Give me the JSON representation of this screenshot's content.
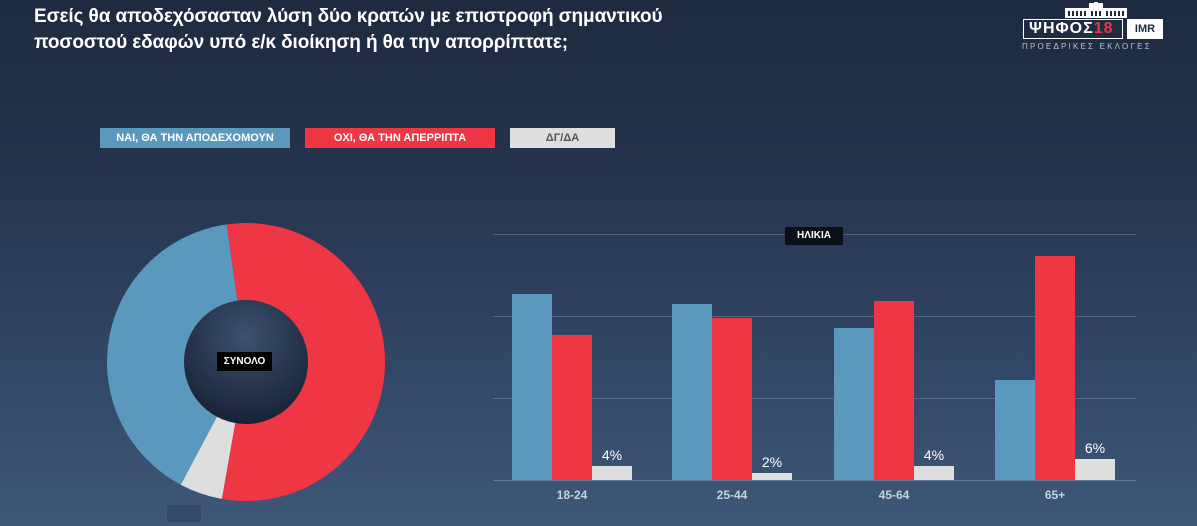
{
  "title": "Εσείς θα αποδεχόσασταν λύση δύο κρατών με επιστροφή σημαντικού ποσοστού εδαφών υπό ε/κ διοίκηση ή θα την απορρίπτατε;",
  "logo": {
    "main_text": "ΨΗΦΟΣ",
    "main_number": "18",
    "partner": "IMR",
    "subtitle": "ΠΡΟΕΔΡΙΚΕΣ ΕΚΛΟΓΕΣ"
  },
  "legend": {
    "yes": "ΝΑΙ, ΘΑ ΤΗΝ ΑΠΟΔΕΧΟΜΟΥΝ",
    "no": "ΟΧΙ, ΘΑ ΤΗΝ ΑΠΕΡΡΙΠΤΑ",
    "dk": "ΔΓ/ΔΑ"
  },
  "colors": {
    "yes": "#5b98be",
    "no": "#ef3645",
    "dk": "#dedede",
    "background_top": "#1e2a40",
    "background_bottom": "#3f5878"
  },
  "donut": {
    "label": "ΣΥΝΟΛΟ"
  },
  "bars": {
    "group_title": "ΗΛΙΚΙΑ"
  },
  "chart_data": [
    {
      "type": "pie",
      "title": "ΣΥΝΟΛΟ",
      "categories": [
        "ΝΑΙ, ΘΑ ΤΗΝ ΑΠΟΔΕΧΟΜΟΥΝ",
        "ΟΧΙ, ΘΑ ΤΗΝ ΑΠΕΡΡΙΠΤΑ",
        "ΔΓ/ΔΑ"
      ],
      "values": [
        40,
        55,
        5
      ],
      "donut": true,
      "labels_shown": false
    },
    {
      "type": "bar",
      "title": "ΗΛΙΚΙΑ",
      "categories": [
        "18-24",
        "25-44",
        "45-64",
        "65+"
      ],
      "series": [
        {
          "name": "ΝΑΙ, ΘΑ ΤΗΝ ΑΠΟΔΕΧΟΜΟΥΝ",
          "values": [
            54,
            51,
            44,
            29
          ]
        },
        {
          "name": "ΟΧΙ, ΘΑ ΤΗΝ ΑΠΕΡΡΙΠΤΑ",
          "values": [
            42,
            47,
            52,
            65
          ]
        },
        {
          "name": "ΔΓ/ΔΑ",
          "values": [
            4,
            2,
            4,
            6
          ]
        }
      ],
      "value_labels": [
        "4%",
        "2%",
        "4%",
        "6%"
      ],
      "xlabel": "",
      "ylabel": "",
      "grid": true,
      "legend_position": "top"
    }
  ]
}
